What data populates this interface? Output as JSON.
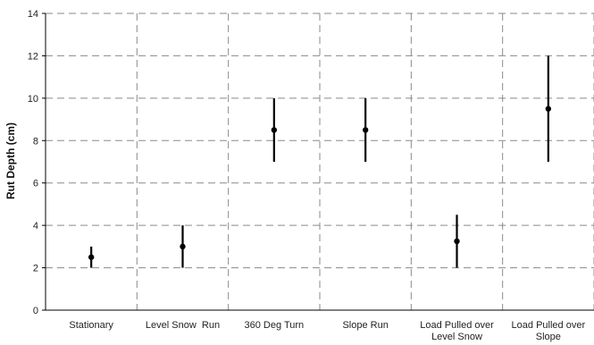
{
  "chart_data": {
    "type": "scatter",
    "title": "",
    "xlabel": "",
    "ylabel": "Rut Depth (cm)",
    "ylim": [
      0,
      14
    ],
    "yticks": [
      0,
      2,
      4,
      6,
      8,
      10,
      12,
      14
    ],
    "grid": true,
    "categories": [
      "Stationary",
      "Level Snow Run",
      "360 Deg Turn",
      "Slope Run",
      "Load Pulled over Level Snow",
      "Load Pulled over Slope"
    ],
    "category_lines": [
      [
        "Stationary"
      ],
      [
        "Level Snow  Run"
      ],
      [
        "360 Deg Turn"
      ],
      [
        "Slope Run"
      ],
      [
        "Load Pulled over",
        "Level Snow"
      ],
      [
        "Load Pulled over",
        "Slope"
      ]
    ],
    "series": [
      {
        "values": [
          2.5,
          3.0,
          8.5,
          8.5,
          3.25,
          9.5
        ],
        "min": [
          2.0,
          2.0,
          7.0,
          7.0,
          2.0,
          7.0
        ],
        "max": [
          3.0,
          4.0,
          10.0,
          10.0,
          4.5,
          12.0
        ]
      }
    ],
    "colors": {
      "marker": "#000000",
      "grid": "#8a8a8a",
      "axis": "#000000"
    }
  }
}
